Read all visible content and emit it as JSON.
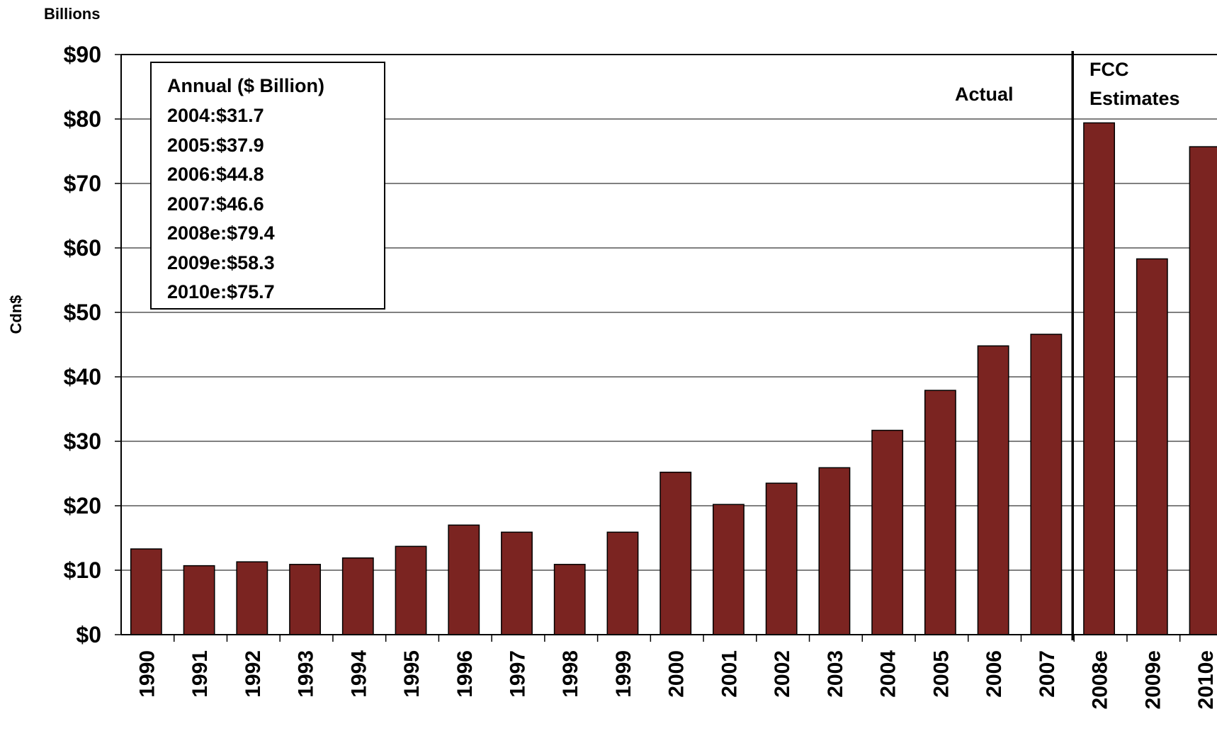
{
  "chart_data": {
    "type": "bar",
    "title": "",
    "y_unit_label": "Billions",
    "ylabel": "Cdn$",
    "xlabel": "",
    "ylim": [
      0,
      90
    ],
    "y_ticks": [
      "$0",
      "$10",
      "$20",
      "$30",
      "$40",
      "$50",
      "$60",
      "$70",
      "$80",
      "$90"
    ],
    "grid": true,
    "bar_color": "#7B2421",
    "categories": [
      "1990",
      "1991",
      "1992",
      "1993",
      "1994",
      "1995",
      "1996",
      "1997",
      "1998",
      "1999",
      "2000",
      "2001",
      "2002",
      "2003",
      "2004",
      "2005",
      "2006",
      "2007",
      "2008e",
      "2009e",
      "2010e"
    ],
    "values": [
      13.3,
      10.7,
      11.3,
      10.9,
      11.9,
      13.7,
      17.0,
      15.9,
      10.9,
      15.9,
      25.2,
      20.2,
      23.5,
      25.9,
      31.7,
      37.9,
      44.8,
      46.6,
      79.4,
      58.3,
      75.7
    ],
    "divider_after_category": "2007",
    "section_labels": {
      "actual": "Actual",
      "estimates_line1": "FCC",
      "estimates_line2": "Estimates"
    },
    "annotation_box": {
      "title": "Annual ($ Billion)",
      "lines": [
        "2004:$31.7",
        "2005:$37.9",
        "2006:$44.8",
        "2007:$46.6",
        "2008e:$79.4",
        "2009e:$58.3",
        "2010e:$75.7"
      ]
    }
  }
}
